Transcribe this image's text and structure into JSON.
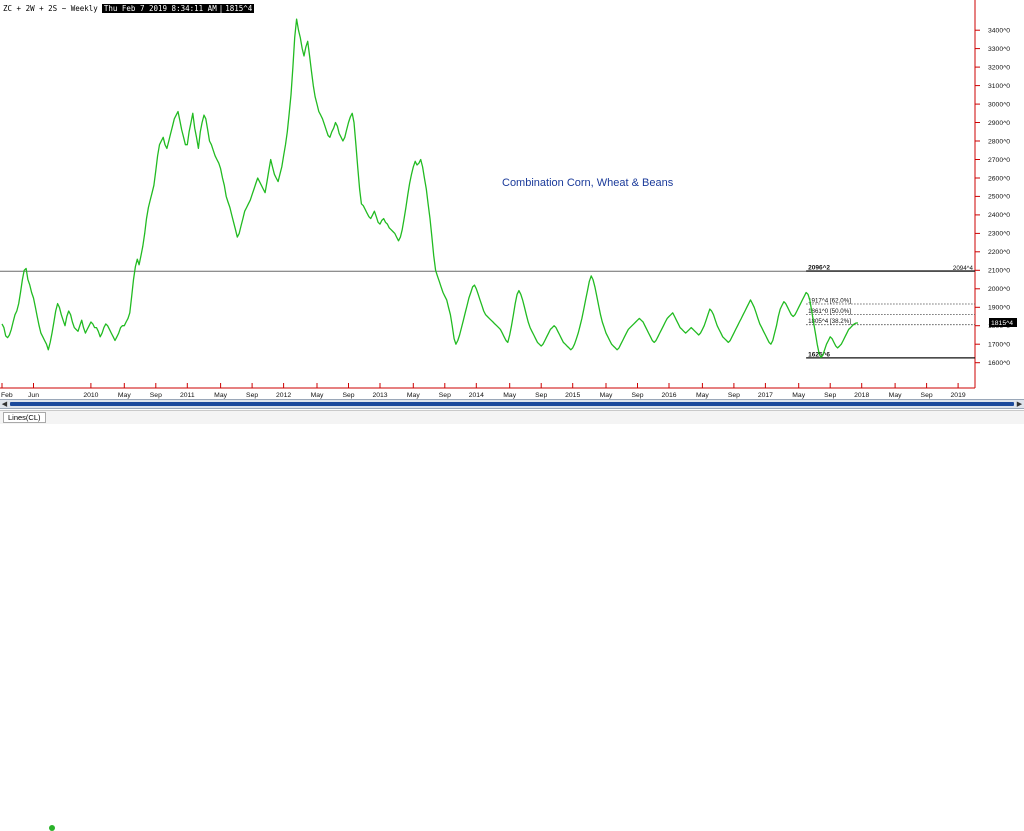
{
  "header": {
    "symbol": "ZC + 2W + 2S ~ Weekly",
    "datetime": "Thu Feb 7 2019 8:34:11 AM",
    "last_value": "1815^4"
  },
  "annotation": "Combination Corn, Wheat & Beans",
  "tabs": [
    {
      "label": "Lines(CL)"
    }
  ],
  "colors": {
    "price": "#22bb22",
    "annotation": "#1a3a9a",
    "status": "#29b229",
    "scroll": "#1c4a9c"
  },
  "icons": {
    "scroll_left": "arrow-left-icon",
    "scroll_right": "arrow-right-icon",
    "status": "status-dot-icon"
  },
  "chart_data": {
    "type": "line",
    "series": [
      {
        "values": [
          1810,
          1790,
          1745,
          1735,
          1750,
          1780,
          1820,
          1860,
          1880,
          1920,
          1980,
          2050,
          2100,
          2110,
          2050,
          2020,
          1980,
          1950,
          1900,
          1850,
          1800,
          1760,
          1740,
          1720,
          1700,
          1670,
          1710,
          1760,
          1820,
          1880,
          1920,
          1900,
          1860,
          1830,
          1800,
          1850,
          1880,
          1860,
          1820,
          1790,
          1780,
          1770,
          1800,
          1830,
          1790,
          1760,
          1780,
          1800,
          1820,
          1810,
          1790,
          1790,
          1770,
          1740,
          1760,
          1790,
          1810,
          1800,
          1780,
          1760,
          1740,
          1720,
          1740,
          1760,
          1790,
          1800,
          1800,
          1820,
          1840,
          1870,
          1960,
          2050,
          2120,
          2160,
          2130,
          2180,
          2230,
          2300,
          2380,
          2440,
          2480,
          2520,
          2560,
          2640,
          2720,
          2780,
          2800,
          2820,
          2780,
          2760,
          2800,
          2840,
          2880,
          2920,
          2940,
          2960,
          2910,
          2860,
          2820,
          2780,
          2780,
          2850,
          2900,
          2950,
          2870,
          2820,
          2760,
          2850,
          2900,
          2940,
          2920,
          2860,
          2800,
          2780,
          2750,
          2720,
          2700,
          2680,
          2650,
          2600,
          2560,
          2500,
          2470,
          2440,
          2400,
          2360,
          2320,
          2280,
          2300,
          2340,
          2380,
          2420,
          2440,
          2460,
          2480,
          2510,
          2540,
          2570,
          2600,
          2580,
          2560,
          2540,
          2520,
          2580,
          2640,
          2700,
          2660,
          2620,
          2600,
          2580,
          2620,
          2660,
          2720,
          2780,
          2850,
          2950,
          3050,
          3200,
          3360,
          3460,
          3400,
          3360,
          3300,
          3260,
          3310,
          3340,
          3260,
          3180,
          3100,
          3040,
          3000,
          2960,
          2940,
          2920,
          2890,
          2860,
          2830,
          2820,
          2850,
          2870,
          2900,
          2880,
          2840,
          2820,
          2800,
          2820,
          2860,
          2900,
          2930,
          2950,
          2900,
          2780,
          2660,
          2540,
          2460,
          2450,
          2430,
          2410,
          2390,
          2380,
          2400,
          2420,
          2390,
          2360,
          2350,
          2370,
          2380,
          2360,
          2350,
          2330,
          2320,
          2310,
          2300,
          2280,
          2260,
          2280,
          2320,
          2380,
          2440,
          2510,
          2570,
          2620,
          2660,
          2690,
          2670,
          2680,
          2700,
          2660,
          2600,
          2540,
          2460,
          2380,
          2280,
          2180,
          2100,
          2070,
          2040,
          2010,
          1980,
          1960,
          1940,
          1900,
          1860,
          1800,
          1730,
          1700,
          1720,
          1750,
          1790,
          1830,
          1870,
          1910,
          1950,
          1980,
          2010,
          2020,
          2000,
          1970,
          1940,
          1910,
          1880,
          1860,
          1850,
          1840,
          1830,
          1820,
          1810,
          1800,
          1790,
          1780,
          1760,
          1740,
          1720,
          1710,
          1750,
          1800,
          1860,
          1920,
          1970,
          1990,
          1970,
          1940,
          1900,
          1860,
          1820,
          1790,
          1770,
          1750,
          1730,
          1710,
          1700,
          1690,
          1700,
          1720,
          1740,
          1760,
          1780,
          1790,
          1800,
          1790,
          1770,
          1750,
          1730,
          1710,
          1700,
          1690,
          1680,
          1670,
          1680,
          1700,
          1730,
          1760,
          1800,
          1840,
          1890,
          1940,
          1990,
          2040,
          2070,
          2050,
          2010,
          1960,
          1910,
          1860,
          1820,
          1790,
          1760,
          1740,
          1720,
          1700,
          1690,
          1680,
          1670,
          1680,
          1700,
          1720,
          1740,
          1760,
          1780,
          1790,
          1800,
          1810,
          1820,
          1830,
          1840,
          1830,
          1820,
          1800,
          1780,
          1760,
          1740,
          1720,
          1710,
          1720,
          1740,
          1760,
          1780,
          1800,
          1820,
          1840,
          1850,
          1860,
          1870,
          1850,
          1830,
          1810,
          1790,
          1780,
          1770,
          1760,
          1770,
          1780,
          1790,
          1780,
          1770,
          1760,
          1750,
          1760,
          1780,
          1800,
          1830,
          1860,
          1890,
          1880,
          1860,
          1830,
          1800,
          1780,
          1760,
          1740,
          1730,
          1720,
          1710,
          1720,
          1740,
          1760,
          1780,
          1800,
          1820,
          1840,
          1860,
          1880,
          1900,
          1920,
          1940,
          1920,
          1900,
          1870,
          1840,
          1810,
          1790,
          1770,
          1750,
          1730,
          1710,
          1700,
          1720,
          1760,
          1800,
          1850,
          1890,
          1910,
          1930,
          1920,
          1900,
          1880,
          1860,
          1850,
          1860,
          1880,
          1900,
          1920,
          1940,
          1960,
          1980,
          1970,
          1940,
          1880,
          1820,
          1760,
          1700,
          1650,
          1628,
          1640,
          1670,
          1700,
          1720,
          1740,
          1730,
          1710,
          1690,
          1680,
          1690,
          1700,
          1720,
          1740,
          1760,
          1780,
          1790,
          1800,
          1810,
          1815,
          1815
        ]
      }
    ],
    "x_ticks": [
      {
        "label": "Feb",
        "i": 0
      },
      {
        "label": "Jun",
        "i": 17
      },
      {
        "label": "2010",
        "i": 48
      },
      {
        "label": "May",
        "i": 66
      },
      {
        "label": "Sep",
        "i": 83
      },
      {
        "label": "2011",
        "i": 100
      },
      {
        "label": "May",
        "i": 118
      },
      {
        "label": "Sep",
        "i": 135
      },
      {
        "label": "2012",
        "i": 152
      },
      {
        "label": "May",
        "i": 170
      },
      {
        "label": "Sep",
        "i": 187
      },
      {
        "label": "2013",
        "i": 204
      },
      {
        "label": "May",
        "i": 222
      },
      {
        "label": "Sep",
        "i": 239
      },
      {
        "label": "2014",
        "i": 256
      },
      {
        "label": "May",
        "i": 274
      },
      {
        "label": "Sep",
        "i": 291
      },
      {
        "label": "2015",
        "i": 308
      },
      {
        "label": "May",
        "i": 326
      },
      {
        "label": "Sep",
        "i": 343
      },
      {
        "label": "2016",
        "i": 360
      },
      {
        "label": "May",
        "i": 378
      },
      {
        "label": "Sep",
        "i": 395
      },
      {
        "label": "2017",
        "i": 412
      },
      {
        "label": "May",
        "i": 430
      },
      {
        "label": "Sep",
        "i": 447
      },
      {
        "label": "2018",
        "i": 464
      },
      {
        "label": "May",
        "i": 482
      },
      {
        "label": "Sep",
        "i": 499
      },
      {
        "label": "2019",
        "i": 516
      }
    ],
    "y_ticks": [
      1600,
      1700,
      1800,
      1900,
      2000,
      2100,
      2200,
      2300,
      2400,
      2500,
      2600,
      2700,
      2800,
      2900,
      3000,
      3100,
      3200,
      3300,
      3400
    ],
    "y_tick_labels": [
      "1600^0",
      "1700^0",
      "1800^0",
      "1900^0",
      "2000^0",
      "2100^0",
      "2200^0",
      "2300^0",
      "2400^0",
      "2500^0",
      "2600^0",
      "2700^0",
      "2800^0",
      "2900^0",
      "3000^0",
      "3100^0",
      "3200^0",
      "3300^0",
      "3400^0"
    ],
    "ylim": [
      1555,
      3520
    ],
    "horizontal_lines": [
      {
        "value": 2094.5,
        "style": "solid-gray",
        "right_label": "2094^4"
      },
      {
        "value": 2096.25,
        "style": "solid-black",
        "label": "2096^2",
        "from_i": 434
      },
      {
        "value": 1917.5,
        "style": "dotted",
        "label": "1917^4 [62.0%]",
        "from_i": 434
      },
      {
        "value": 1861,
        "style": "dotted",
        "label": "1861^0 [50.0%]",
        "from_i": 434
      },
      {
        "value": 1805.5,
        "style": "dotted",
        "label": "1805^4 [38.2%]",
        "from_i": 434
      },
      {
        "value": 1625.75,
        "style": "solid-black",
        "label": "1625^6",
        "from_i": 434
      }
    ],
    "last_value_label": "1815^4",
    "grid": false
  }
}
